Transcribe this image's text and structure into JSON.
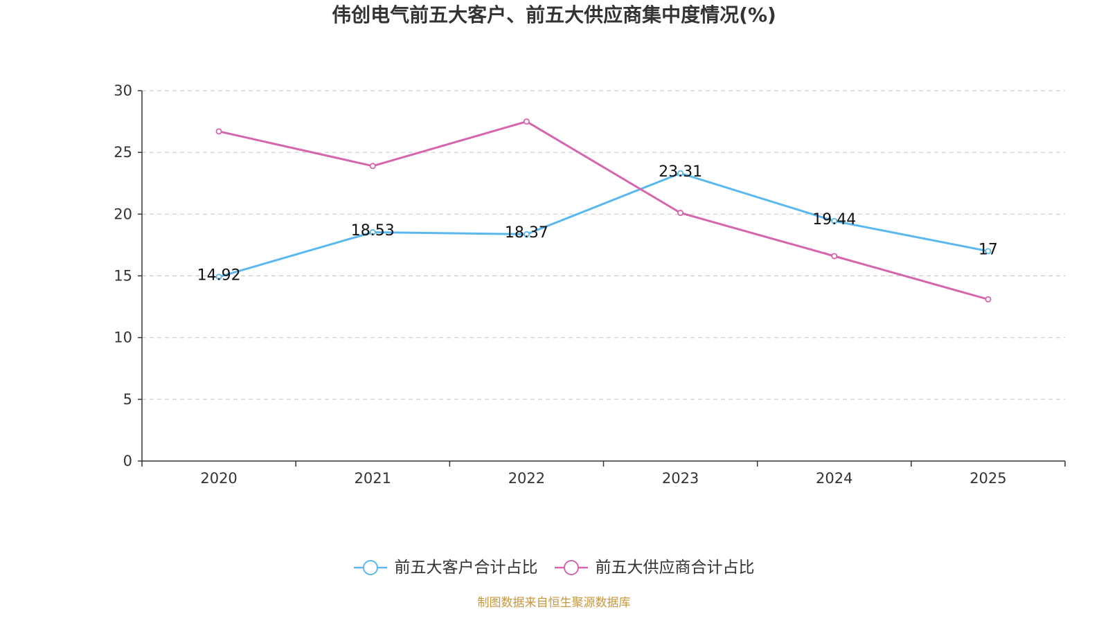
{
  "footer": "制图数据来自恒生聚源数据库",
  "colors": {
    "text": "#333333",
    "axis": "#333333",
    "grid": "#cccccc",
    "data_label": "#111111",
    "footer": "#c8963c"
  },
  "chart_data": {
    "type": "line",
    "title": "伟创电气前五大客户、前五大供应商集中度情况(%)",
    "xlabel": "",
    "ylabel": "",
    "categories": [
      "2020",
      "2021",
      "2022",
      "2023",
      "2024",
      "2025"
    ],
    "ylim": [
      0,
      30
    ],
    "yticks": [
      0,
      5,
      10,
      15,
      20,
      25,
      30
    ],
    "grid": true,
    "legend": "bottom-center",
    "series": [
      {
        "name": "前五大客户合计占比",
        "color": "#5ab8ef",
        "show_labels": true,
        "values": [
          14.92,
          18.53,
          18.37,
          23.31,
          19.44,
          17
        ]
      },
      {
        "name": "前五大供应商合计占比",
        "color": "#d565ad",
        "show_labels": false,
        "values": [
          26.7,
          23.9,
          27.5,
          20.1,
          16.6,
          13.1
        ]
      }
    ]
  }
}
